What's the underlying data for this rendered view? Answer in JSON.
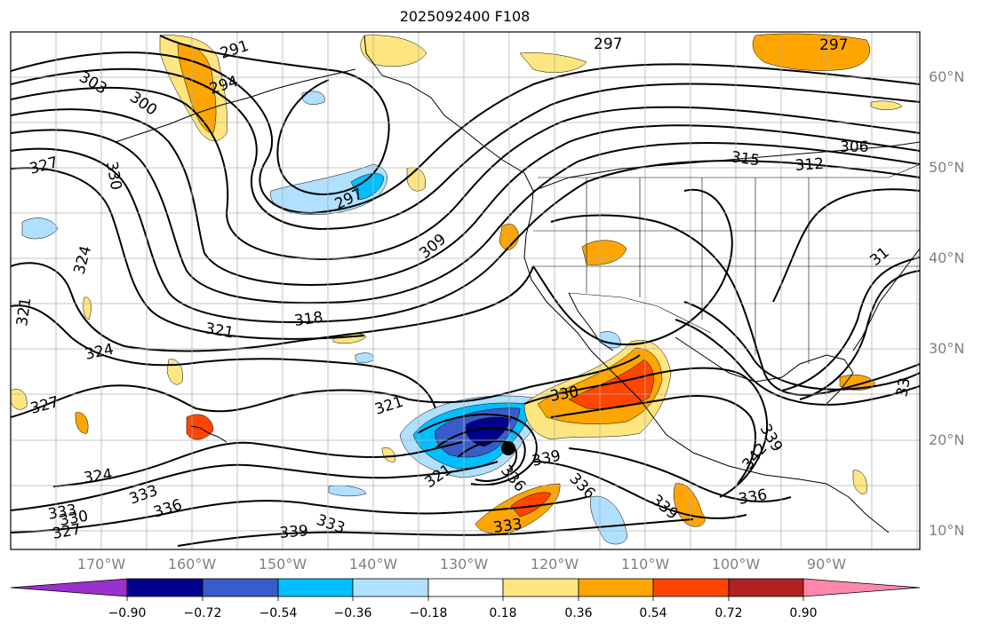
{
  "title": "2025092400 F108",
  "lat_labels": [
    "60°N",
    "50°N",
    "40°N",
    "30°N",
    "20°N",
    "10°N"
  ],
  "lon_labels": [
    "170°W",
    "160°W",
    "150°W",
    "140°W",
    "130°W",
    "120°W",
    "110°W",
    "100°W",
    "90°W"
  ],
  "colorbar": {
    "colors": [
      "#9932cc",
      "#00008b",
      "#3a5cc8",
      "#00bfff",
      "#b0e0ff",
      "#ffffff",
      "#ffe680",
      "#ffa500",
      "#ff4500",
      "#b22222",
      "#ff88aa"
    ],
    "tick_labels": [
      "−0.90",
      "−0.72",
      "−0.54",
      "−0.36",
      "−0.18",
      "0.18",
      "0.36",
      "0.54",
      "0.72",
      "0.90"
    ]
  },
  "contour_labels": [
    {
      "text": "291"
    },
    {
      "text": "294"
    },
    {
      "text": "297"
    },
    {
      "text": "297"
    },
    {
      "text": "297"
    },
    {
      "text": "300"
    },
    {
      "text": "303"
    },
    {
      "text": "306"
    },
    {
      "text": "309"
    },
    {
      "text": "312"
    },
    {
      "text": "315"
    },
    {
      "text": "318"
    },
    {
      "text": "321"
    },
    {
      "text": "321"
    },
    {
      "text": "321"
    },
    {
      "text": "321"
    },
    {
      "text": "324"
    },
    {
      "text": "324"
    },
    {
      "text": "324"
    },
    {
      "text": "327"
    },
    {
      "text": "327"
    },
    {
      "text": "327"
    },
    {
      "text": "330"
    },
    {
      "text": "330"
    },
    {
      "text": "330"
    },
    {
      "text": "333"
    },
    {
      "text": "333"
    },
    {
      "text": "333"
    },
    {
      "text": "333"
    },
    {
      "text": "336"
    },
    {
      "text": "336"
    },
    {
      "text": "336"
    },
    {
      "text": "336"
    },
    {
      "text": "339"
    },
    {
      "text": "339"
    },
    {
      "text": "339"
    },
    {
      "text": "339"
    },
    {
      "text": "342"
    },
    {
      "text": "31"
    },
    {
      "text": "33"
    }
  ],
  "storm_marker": {
    "label": "storm-center"
  },
  "colors": {
    "contour": "#000000",
    "grid": "#b0b0b0",
    "coast": "#000000",
    "axis_label": "#808080"
  }
}
